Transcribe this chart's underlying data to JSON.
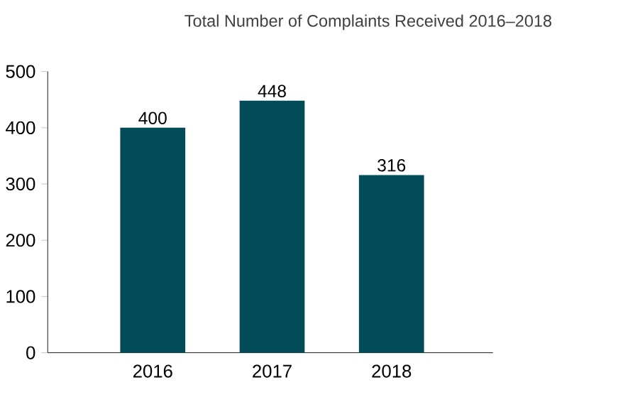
{
  "chart_data": {
    "type": "bar",
    "title": "Total Number of Complaints Received 2016–2018",
    "categories": [
      "2016",
      "2017",
      "2018"
    ],
    "values": [
      400,
      448,
      316
    ],
    "color": "#024c5a",
    "ylim": [
      0,
      500
    ],
    "yticks": [
      0,
      100,
      200,
      300,
      400,
      500
    ],
    "grid": false,
    "data_labels": true
  }
}
